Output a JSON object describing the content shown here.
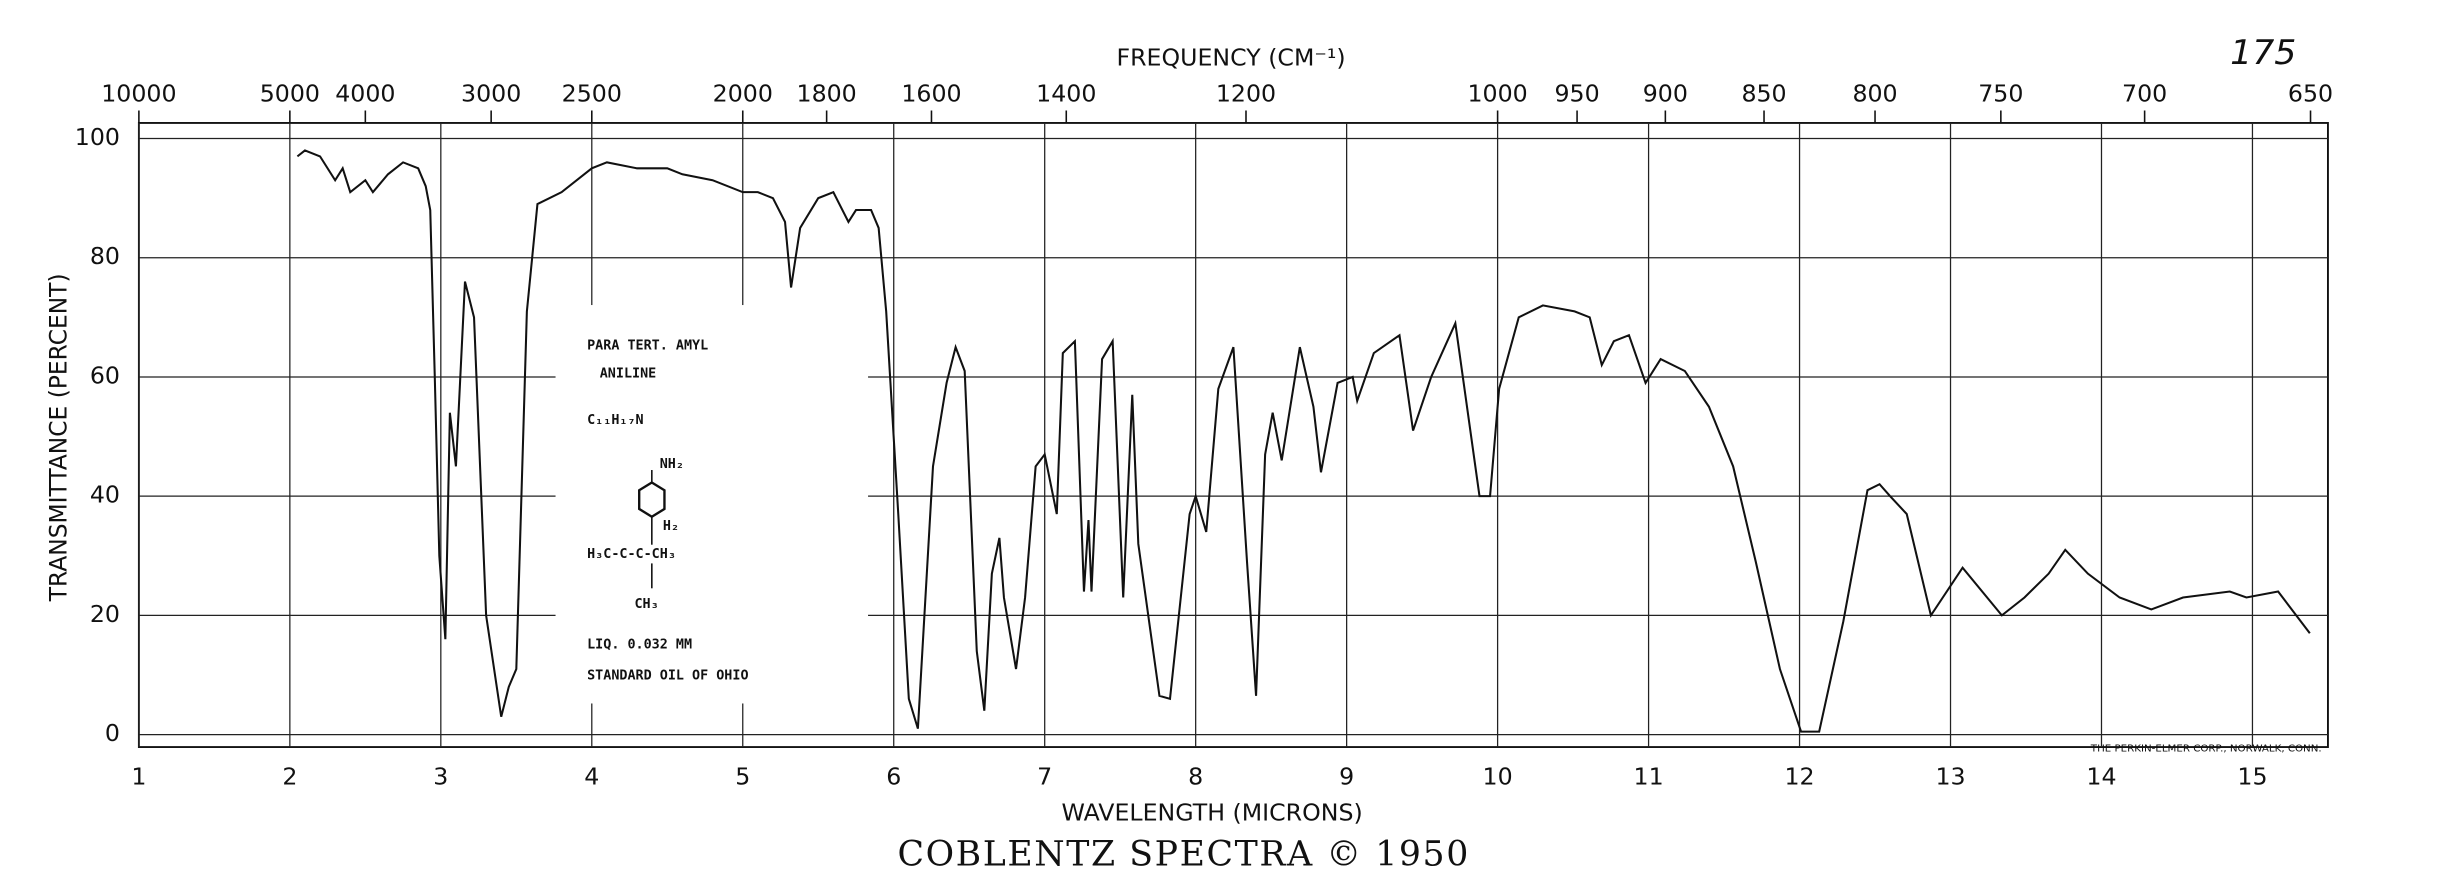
{
  "chart_data": {
    "type": "line",
    "title": "COBLENTZ SPECTRA © 1950",
    "page_number": "175",
    "x_label": "WAVELENGTH (MICRONS)",
    "x2_label": "FREQUENCY (CM⁻¹)",
    "y_label": "TRANSMITTANCE (PERCENT)",
    "credit": "THE PERKIN-ELMER CORP., NORWALK, CONN.",
    "annotations": [
      "PARA TERT. AMYL",
      "ANILINE",
      "C₁₁H₁₇N",
      "NH₂",
      "H₂",
      "H₃C-C-C-CH₃",
      "CH₃",
      "LIQ. 0.032 MM",
      "STANDARD OIL OF OHIO"
    ],
    "xlim": [
      1,
      15.5
    ],
    "ylim": [
      0,
      100
    ],
    "xticks": [
      1,
      2,
      3,
      4,
      5,
      6,
      7,
      8,
      9,
      10,
      11,
      12,
      13,
      14,
      15
    ],
    "yticks": [
      0,
      20,
      40,
      60,
      80,
      100
    ],
    "x2ticks": [
      10000,
      5000,
      4000,
      3000,
      2500,
      2000,
      1800,
      1600,
      1400,
      1200,
      1000,
      950,
      900,
      850,
      800,
      750,
      700,
      650
    ],
    "grid": true,
    "color": "#111111",
    "x": [
      2.05,
      2.1,
      2.2,
      2.3,
      2.35,
      2.4,
      2.5,
      2.55,
      2.65,
      2.75,
      2.85,
      2.9,
      2.93,
      2.96,
      2.99,
      3.03,
      3.06,
      3.1,
      3.16,
      3.22,
      3.3,
      3.4,
      3.45,
      3.5,
      3.57,
      3.64,
      3.8,
      4.0,
      4.1,
      4.3,
      4.5,
      4.6,
      4.8,
      5.0,
      5.1,
      5.2,
      5.28,
      5.32,
      5.38,
      5.5,
      5.6,
      5.7,
      5.75,
      5.85,
      5.9,
      5.95,
      6.03,
      6.1,
      6.16,
      6.26,
      6.35,
      6.41,
      6.47,
      6.55,
      6.6,
      6.65,
      6.7,
      6.73,
      6.81,
      6.87,
      6.94,
      7.0,
      7.08,
      7.12,
      7.2,
      7.26,
      7.29,
      7.31,
      7.38,
      7.45,
      7.52,
      7.58,
      7.62,
      7.76,
      7.83,
      7.96,
      8.0,
      8.07,
      8.15,
      8.25,
      8.34,
      8.4,
      8.46,
      8.51,
      8.57,
      8.69,
      8.78,
      8.83,
      8.94,
      9.04,
      9.07,
      9.18,
      9.35,
      9.44,
      9.56,
      9.72,
      9.88,
      9.95,
      10.01,
      10.14,
      10.3,
      10.51,
      10.61,
      10.69,
      10.77,
      10.87,
      10.98,
      11.08,
      11.24,
      11.4,
      11.56,
      11.71,
      11.87,
      12.01,
      12.13,
      12.29,
      12.45,
      12.53,
      12.6,
      12.71,
      12.87,
      13.08,
      13.34,
      13.49,
      13.65,
      13.76,
      13.91,
      14.12,
      14.33,
      14.54,
      14.85,
      14.96,
      15.17,
      15.38
    ],
    "values": [
      97,
      98,
      97,
      93,
      95,
      91,
      93,
      91,
      94,
      96,
      95,
      92,
      88,
      60,
      30,
      16,
      54,
      45,
      76,
      70,
      20,
      3,
      8,
      11,
      71,
      89,
      91,
      95,
      96,
      95,
      95,
      94,
      93,
      91,
      91,
      90,
      86,
      75,
      85,
      90,
      91,
      86,
      88,
      88,
      85,
      71,
      37,
      6,
      1,
      45,
      59,
      65,
      61,
      14,
      4,
      27,
      33,
      23,
      11,
      23,
      45,
      47,
      37,
      64,
      66,
      24,
      36,
      24,
      63,
      66,
      23,
      57,
      32,
      6.5,
      6,
      37,
      40,
      34,
      58,
      65,
      29,
      6.5,
      47,
      54,
      46,
      65,
      55,
      44,
      59,
      60,
      56,
      64,
      67,
      51,
      60,
      69,
      40,
      40,
      58,
      70,
      72,
      71,
      70,
      62,
      66,
      67,
      59,
      63,
      61,
      55,
      45,
      29,
      11,
      0.5,
      0.5,
      19,
      41,
      42,
      40,
      37,
      20,
      28,
      20,
      23,
      27,
      31,
      27,
      23,
      21,
      23,
      24,
      23,
      24,
      17
    ]
  }
}
